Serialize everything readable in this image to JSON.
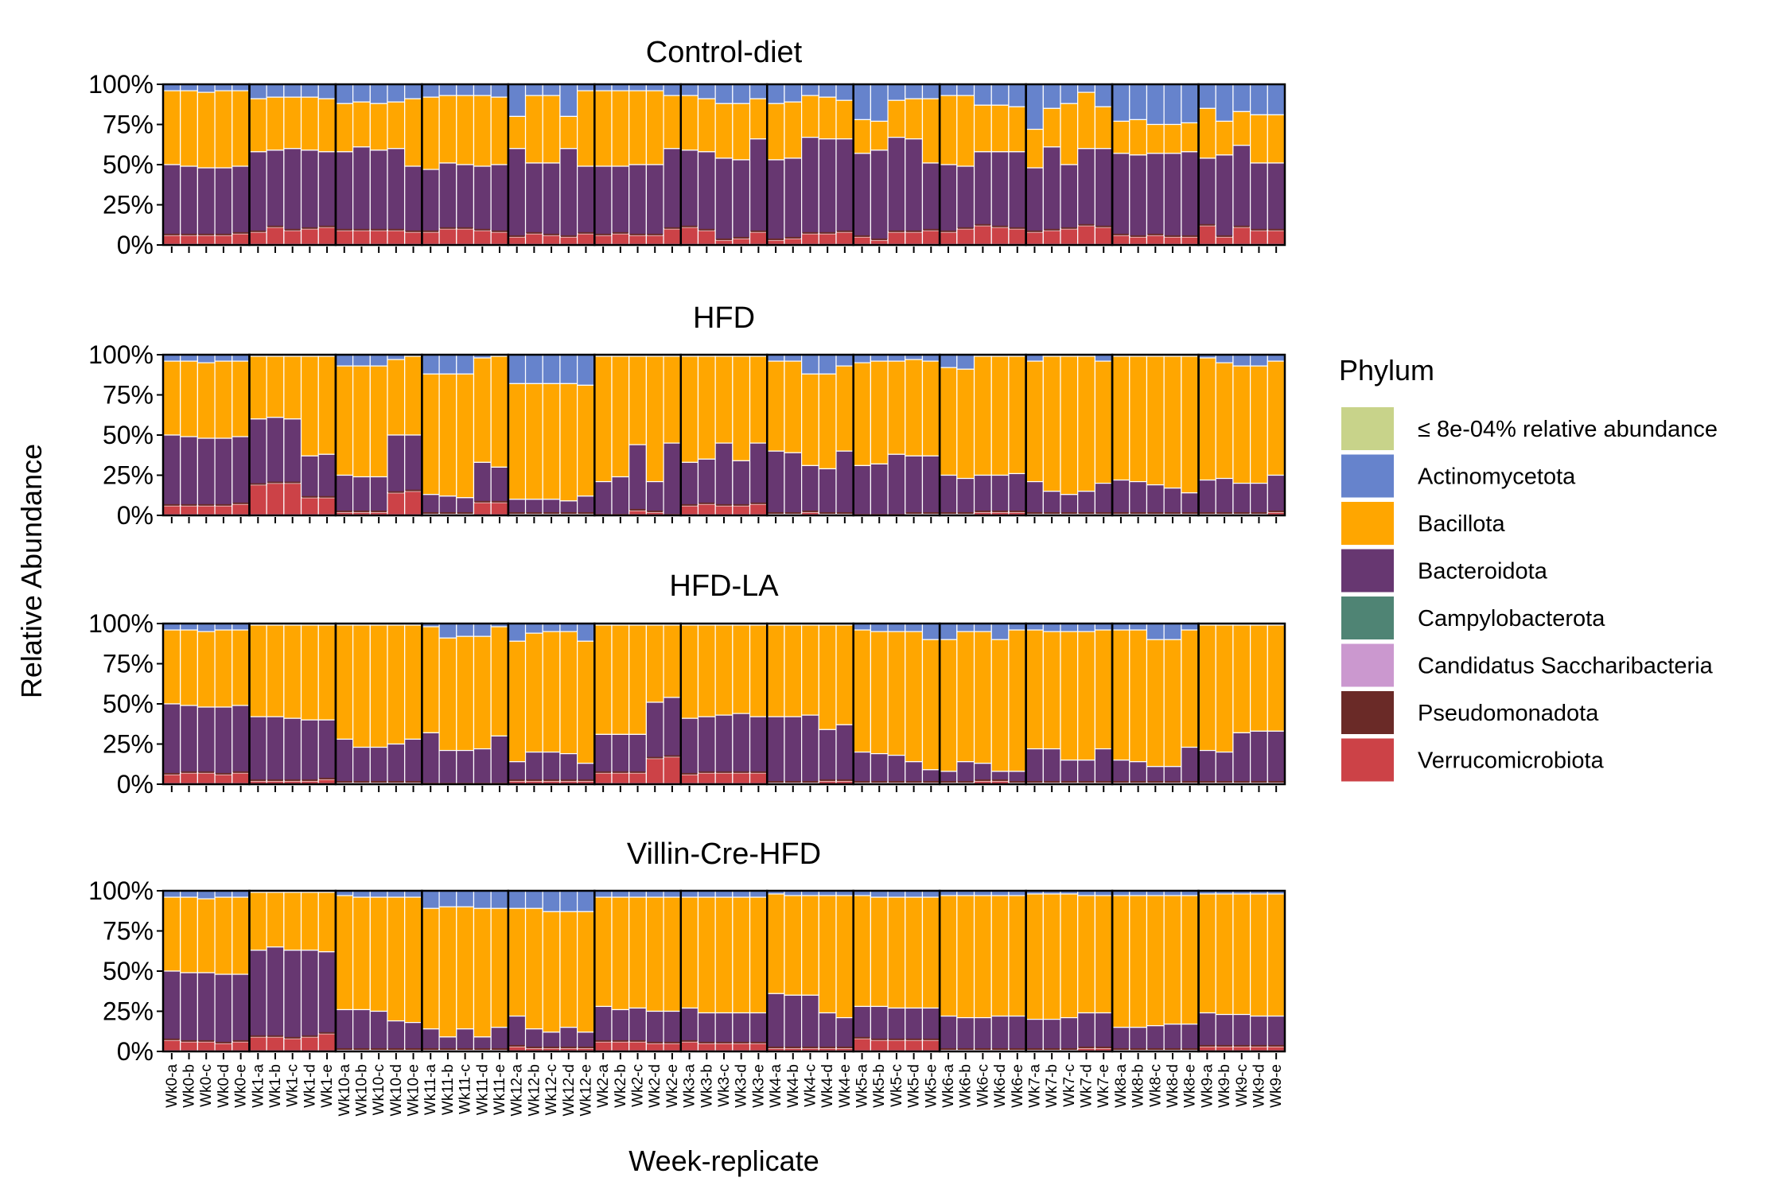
{
  "chart_data": {
    "type": "bar",
    "stacked": true,
    "ylabel": "Relative Abundance",
    "xlabel": "Week-replicate",
    "ylim": [
      0,
      100
    ],
    "y_ticks": [
      "0%",
      "25%",
      "50%",
      "75%",
      "100%"
    ],
    "legend": {
      "title": "Phylum",
      "placement": "right",
      "entries": [
        {
          "name": "≤ 8e-04% relative abundance",
          "color": "#c8d38a"
        },
        {
          "name": "Actinomycetota",
          "color": "#6683cc"
        },
        {
          "name": "Bacillota",
          "color": "#ffa600"
        },
        {
          "name": "Bacteroidota",
          "color": "#673771"
        },
        {
          "name": "Campylobacterota",
          "color": "#4f8474"
        },
        {
          "name": "Candidatus Saccharibacteria",
          "color": "#cb98cf"
        },
        {
          "name": "Pseudomonadota",
          "color": "#6a2a27"
        },
        {
          "name": "Verrucomicrobiota",
          "color": "#cc4247"
        }
      ]
    },
    "weeks": [
      "Wk0",
      "Wk1",
      "Wk10",
      "Wk11",
      "Wk12",
      "Wk2",
      "Wk3",
      "Wk4",
      "Wk5",
      "Wk6",
      "Wk7",
      "Wk8",
      "Wk9"
    ],
    "replicates": [
      "a",
      "b",
      "c",
      "d",
      "e"
    ],
    "categories": [
      "Wk0-a",
      "Wk0-b",
      "Wk0-c",
      "Wk0-d",
      "Wk0-e",
      "Wk1-a",
      "Wk1-b",
      "Wk1-c",
      "Wk1-d",
      "Wk1-e",
      "Wk10-a",
      "Wk10-b",
      "Wk10-c",
      "Wk10-d",
      "Wk10-e",
      "Wk11-a",
      "Wk11-b",
      "Wk11-c",
      "Wk11-d",
      "Wk11-e",
      "Wk12-a",
      "Wk12-b",
      "Wk12-c",
      "Wk12-d",
      "Wk12-e",
      "Wk2-a",
      "Wk2-b",
      "Wk2-c",
      "Wk2-d",
      "Wk2-e",
      "Wk3-a",
      "Wk3-b",
      "Wk3-c",
      "Wk3-d",
      "Wk3-e",
      "Wk4-a",
      "Wk4-b",
      "Wk4-c",
      "Wk4-d",
      "Wk4-e",
      "Wk5-a",
      "Wk5-b",
      "Wk5-c",
      "Wk5-d",
      "Wk5-e",
      "Wk6-a",
      "Wk6-b",
      "Wk6-c",
      "Wk6-d",
      "Wk6-e",
      "Wk7-a",
      "Wk7-b",
      "Wk7-c",
      "Wk7-d",
      "Wk7-e",
      "Wk8-a",
      "Wk8-b",
      "Wk8-c",
      "Wk8-d",
      "Wk8-e",
      "Wk9-a",
      "Wk9-b",
      "Wk9-c",
      "Wk9-d",
      "Wk9-e"
    ],
    "panels": [
      {
        "title": "Control-diet",
        "verrucomicrobiota": [
          6,
          6,
          6,
          6,
          7,
          8,
          11,
          9,
          10,
          11,
          9,
          9,
          9,
          9,
          8,
          8,
          10,
          10,
          9,
          8,
          5,
          7,
          6,
          5,
          7,
          6,
          7,
          6,
          6,
          10,
          11,
          9,
          3,
          4,
          8,
          3,
          4,
          7,
          7,
          8,
          5,
          3,
          8,
          8,
          9,
          8,
          10,
          12,
          11,
          10,
          8,
          9,
          10,
          12,
          11,
          6,
          5,
          6,
          5,
          5,
          12,
          5,
          11,
          9,
          9
        ],
        "bacteroidota": [
          50,
          49,
          48,
          48,
          49,
          58,
          59,
          60,
          59,
          58,
          58,
          61,
          59,
          60,
          49,
          47,
          51,
          50,
          49,
          50,
          60,
          51,
          51,
          60,
          49,
          49,
          49,
          50,
          50,
          60,
          59,
          58,
          54,
          53,
          66,
          53,
          54,
          67,
          66,
          66,
          57,
          59,
          67,
          66,
          51,
          50,
          49,
          58,
          58,
          58,
          48,
          61,
          50,
          60,
          60,
          57,
          56,
          57,
          57,
          58,
          54,
          56,
          62,
          51,
          51
        ],
        "bacillota": [
          96,
          96,
          95,
          96,
          96,
          91,
          92,
          92,
          92,
          91,
          88,
          89,
          88,
          89,
          91,
          92,
          93,
          93,
          93,
          92,
          80,
          93,
          93,
          80,
          96,
          96,
          96,
          96,
          96,
          93,
          93,
          91,
          88,
          88,
          91,
          88,
          89,
          93,
          92,
          90,
          78,
          77,
          90,
          91,
          91,
          93,
          93,
          87,
          87,
          86,
          72,
          85,
          88,
          95,
          86,
          77,
          78,
          75,
          75,
          76,
          85,
          77,
          83,
          81,
          81
        ]
      },
      {
        "title": "HFD",
        "verrucomicrobiota": [
          6,
          6,
          6,
          6,
          7,
          19,
          20,
          20,
          11,
          11,
          2,
          2,
          2,
          14,
          15,
          1,
          1,
          1,
          8,
          8,
          1,
          1,
          1,
          1,
          1,
          0,
          0,
          3,
          2,
          0,
          6,
          7,
          6,
          6,
          7,
          1,
          1,
          2,
          1,
          1,
          0,
          0,
          0,
          1,
          1,
          1,
          1,
          2,
          2,
          2,
          1,
          1,
          1,
          1,
          1,
          1,
          1,
          1,
          1,
          1,
          1,
          1,
          1,
          1,
          2
        ],
        "bacteroidota": [
          50,
          49,
          48,
          48,
          49,
          60,
          61,
          60,
          37,
          38,
          25,
          24,
          24,
          50,
          50,
          13,
          12,
          11,
          33,
          30,
          10,
          10,
          10,
          9,
          12,
          21,
          24,
          44,
          21,
          45,
          33,
          35,
          45,
          34,
          45,
          40,
          39,
          31,
          29,
          40,
          31,
          32,
          38,
          37,
          37,
          25,
          23,
          25,
          25,
          26,
          21,
          15,
          13,
          15,
          20,
          22,
          21,
          19,
          17,
          14,
          22,
          23,
          20,
          20,
          25
        ],
        "bacillota": [
          96,
          96,
          95,
          96,
          96,
          99,
          99,
          99,
          99,
          99,
          93,
          93,
          93,
          97,
          99,
          88,
          88,
          88,
          98,
          99,
          82,
          82,
          82,
          82,
          81,
          99,
          99,
          99,
          99,
          99,
          99,
          99,
          99,
          99,
          99,
          96,
          96,
          88,
          88,
          93,
          95,
          96,
          96,
          97,
          96,
          92,
          91,
          99,
          99,
          99,
          96,
          99,
          99,
          99,
          96,
          99,
          99,
          99,
          99,
          99,
          98,
          95,
          93,
          93,
          96
        ]
      },
      {
        "title": "HFD-LA",
        "verrucomicrobiota": [
          6,
          7,
          7,
          6,
          7,
          2,
          2,
          2,
          2,
          3,
          1,
          1,
          1,
          1,
          1,
          0,
          0,
          0,
          0,
          0,
          2,
          2,
          2,
          2,
          2,
          7,
          7,
          7,
          16,
          17,
          6,
          7,
          7,
          7,
          7,
          1,
          1,
          1,
          2,
          2,
          1,
          1,
          1,
          1,
          1,
          1,
          1,
          2,
          2,
          1,
          1,
          1,
          1,
          1,
          1,
          1,
          1,
          1,
          1,
          1,
          1,
          1,
          1,
          1,
          1
        ],
        "bacteroidota": [
          50,
          49,
          48,
          48,
          49,
          42,
          42,
          41,
          40,
          40,
          28,
          23,
          23,
          25,
          28,
          32,
          21,
          21,
          22,
          30,
          14,
          20,
          20,
          19,
          13,
          31,
          31,
          31,
          51,
          54,
          41,
          42,
          43,
          44,
          42,
          42,
          42,
          43,
          34,
          37,
          20,
          19,
          18,
          14,
          9,
          8,
          14,
          13,
          8,
          8,
          22,
          22,
          15,
          15,
          22,
          15,
          14,
          11,
          11,
          23,
          21,
          20,
          32,
          33,
          33
        ],
        "bacillota": [
          96,
          96,
          95,
          96,
          96,
          99,
          99,
          99,
          99,
          99,
          99,
          99,
          99,
          99,
          99,
          98,
          91,
          92,
          92,
          98,
          89,
          94,
          95,
          95,
          89,
          99,
          99,
          99,
          99,
          99,
          99,
          99,
          99,
          99,
          99,
          99,
          99,
          99,
          99,
          99,
          96,
          95,
          95,
          95,
          90,
          90,
          95,
          95,
          90,
          96,
          96,
          95,
          95,
          95,
          96,
          96,
          96,
          90,
          90,
          96,
          99,
          99,
          99,
          99,
          99
        ]
      },
      {
        "title": "Villin-Cre-HFD",
        "verrucomicrobiota": [
          7,
          6,
          6,
          5,
          6,
          9,
          9,
          8,
          9,
          11,
          1,
          1,
          1,
          1,
          1,
          1,
          1,
          1,
          1,
          1,
          3,
          2,
          2,
          2,
          2,
          6,
          6,
          6,
          5,
          5,
          6,
          5,
          5,
          5,
          5,
          2,
          2,
          2,
          2,
          2,
          8,
          7,
          7,
          7,
          7,
          1,
          1,
          1,
          1,
          1,
          1,
          1,
          1,
          2,
          2,
          1,
          1,
          1,
          1,
          1,
          3,
          3,
          3,
          3,
          3
        ],
        "bacteroidota": [
          50,
          49,
          49,
          48,
          48,
          63,
          65,
          63,
          63,
          62,
          26,
          26,
          25,
          19,
          18,
          14,
          9,
          14,
          9,
          15,
          22,
          14,
          12,
          15,
          12,
          28,
          26,
          27,
          25,
          25,
          27,
          24,
          24,
          24,
          24,
          36,
          35,
          35,
          24,
          21,
          28,
          28,
          27,
          27,
          27,
          22,
          21,
          21,
          22,
          22,
          20,
          20,
          21,
          24,
          24,
          15,
          15,
          16,
          17,
          17,
          24,
          23,
          23,
          22,
          22
        ],
        "bacillota": [
          96,
          96,
          95,
          96,
          96,
          99,
          99,
          99,
          99,
          99,
          97,
          96,
          96,
          96,
          96,
          89,
          90,
          90,
          89,
          89,
          89,
          89,
          87,
          87,
          87,
          96,
          96,
          96,
          96,
          96,
          96,
          96,
          96,
          96,
          96,
          98,
          97,
          97,
          97,
          97,
          97,
          96,
          96,
          96,
          96,
          97,
          97,
          97,
          97,
          97,
          98,
          98,
          98,
          97,
          97,
          97,
          97,
          97,
          97,
          97,
          98,
          98,
          98,
          98,
          98
        ]
      }
    ]
  }
}
